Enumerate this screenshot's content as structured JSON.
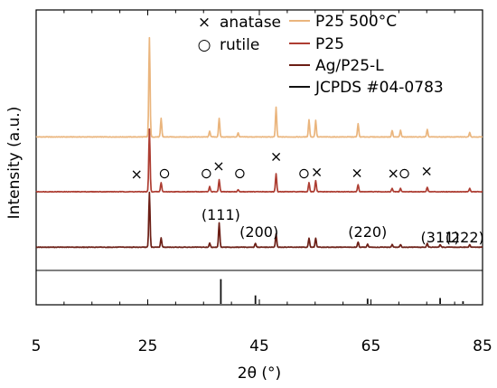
{
  "chart_data": {
    "type": "line",
    "title": "",
    "xlabel": "2θ (°)",
    "ylabel": "Intensity (a.u.)",
    "xlim": [
      5,
      85
    ],
    "x_ticks": [
      "5",
      "25",
      "45",
      "65",
      "85"
    ],
    "grid": false,
    "legend_position": "top-right",
    "marker_legend": [
      {
        "symbol": "×",
        "label": "anatase"
      },
      {
        "symbol": "○",
        "label": "rutile"
      }
    ],
    "series": [
      {
        "name": "P25 500°C",
        "color": "#eab57d",
        "baseline": 1.83,
        "peaks": [
          [
            25.3,
            1.5
          ],
          [
            27.4,
            0.28
          ],
          [
            36.1,
            0.09
          ],
          [
            37.8,
            0.28
          ],
          [
            41.2,
            0.06
          ],
          [
            48.0,
            0.45
          ],
          [
            53.9,
            0.26
          ],
          [
            55.1,
            0.25
          ],
          [
            62.7,
            0.2
          ],
          [
            68.8,
            0.1
          ],
          [
            70.3,
            0.1
          ],
          [
            75.1,
            0.11
          ],
          [
            82.7,
            0.07
          ]
        ]
      },
      {
        "name": "P25",
        "color": "#ad3d32",
        "baseline": 1.0,
        "peaks": [
          [
            25.3,
            0.95
          ],
          [
            27.4,
            0.14
          ],
          [
            36.1,
            0.08
          ],
          [
            37.8,
            0.18
          ],
          [
            41.2,
            0.03
          ],
          [
            48.0,
            0.27
          ],
          [
            53.9,
            0.14
          ],
          [
            55.1,
            0.17
          ],
          [
            62.7,
            0.11
          ],
          [
            68.8,
            0.05
          ],
          [
            70.3,
            0.05
          ],
          [
            75.1,
            0.07
          ],
          [
            82.7,
            0.05
          ]
        ]
      },
      {
        "name": "Ag/P25-L",
        "color": "#6b1e15",
        "baseline": 0.16,
        "peaks": [
          [
            25.3,
            0.83
          ],
          [
            27.4,
            0.14
          ],
          [
            36.1,
            0.06
          ],
          [
            37.8,
            0.37
          ],
          [
            44.3,
            0.06
          ],
          [
            48.0,
            0.2
          ],
          [
            53.9,
            0.14
          ],
          [
            55.1,
            0.14
          ],
          [
            62.7,
            0.08
          ],
          [
            64.4,
            0.05
          ],
          [
            68.8,
            0.04
          ],
          [
            70.3,
            0.04
          ],
          [
            75.1,
            0.06
          ],
          [
            77.4,
            0.04
          ],
          [
            82.7,
            0.04
          ]
        ]
      },
      {
        "name": "JCPDS #04-0783",
        "color": "#111111",
        "type": "stick",
        "sticks": [
          [
            38.1,
            0.38
          ],
          [
            44.3,
            0.13
          ],
          [
            64.4,
            0.08
          ],
          [
            77.4,
            0.09
          ],
          [
            81.5,
            0.04
          ]
        ]
      }
    ],
    "anatase_markers_x": [
      23.0,
      37.7,
      48.0,
      55.3,
      62.5,
      69.0,
      75.0
    ],
    "rutile_markers_x": [
      28.0,
      35.5,
      41.5,
      53.0,
      71.0
    ],
    "hkl_labels": [
      {
        "text": "(111)",
        "x": 38.1
      },
      {
        "text": "(200)",
        "x": 44.3
      },
      {
        "text": "(220)",
        "x": 64.4
      },
      {
        "text": "(311)",
        "x": 77.4
      },
      {
        "text": "(222)",
        "x": 81.8
      }
    ]
  }
}
